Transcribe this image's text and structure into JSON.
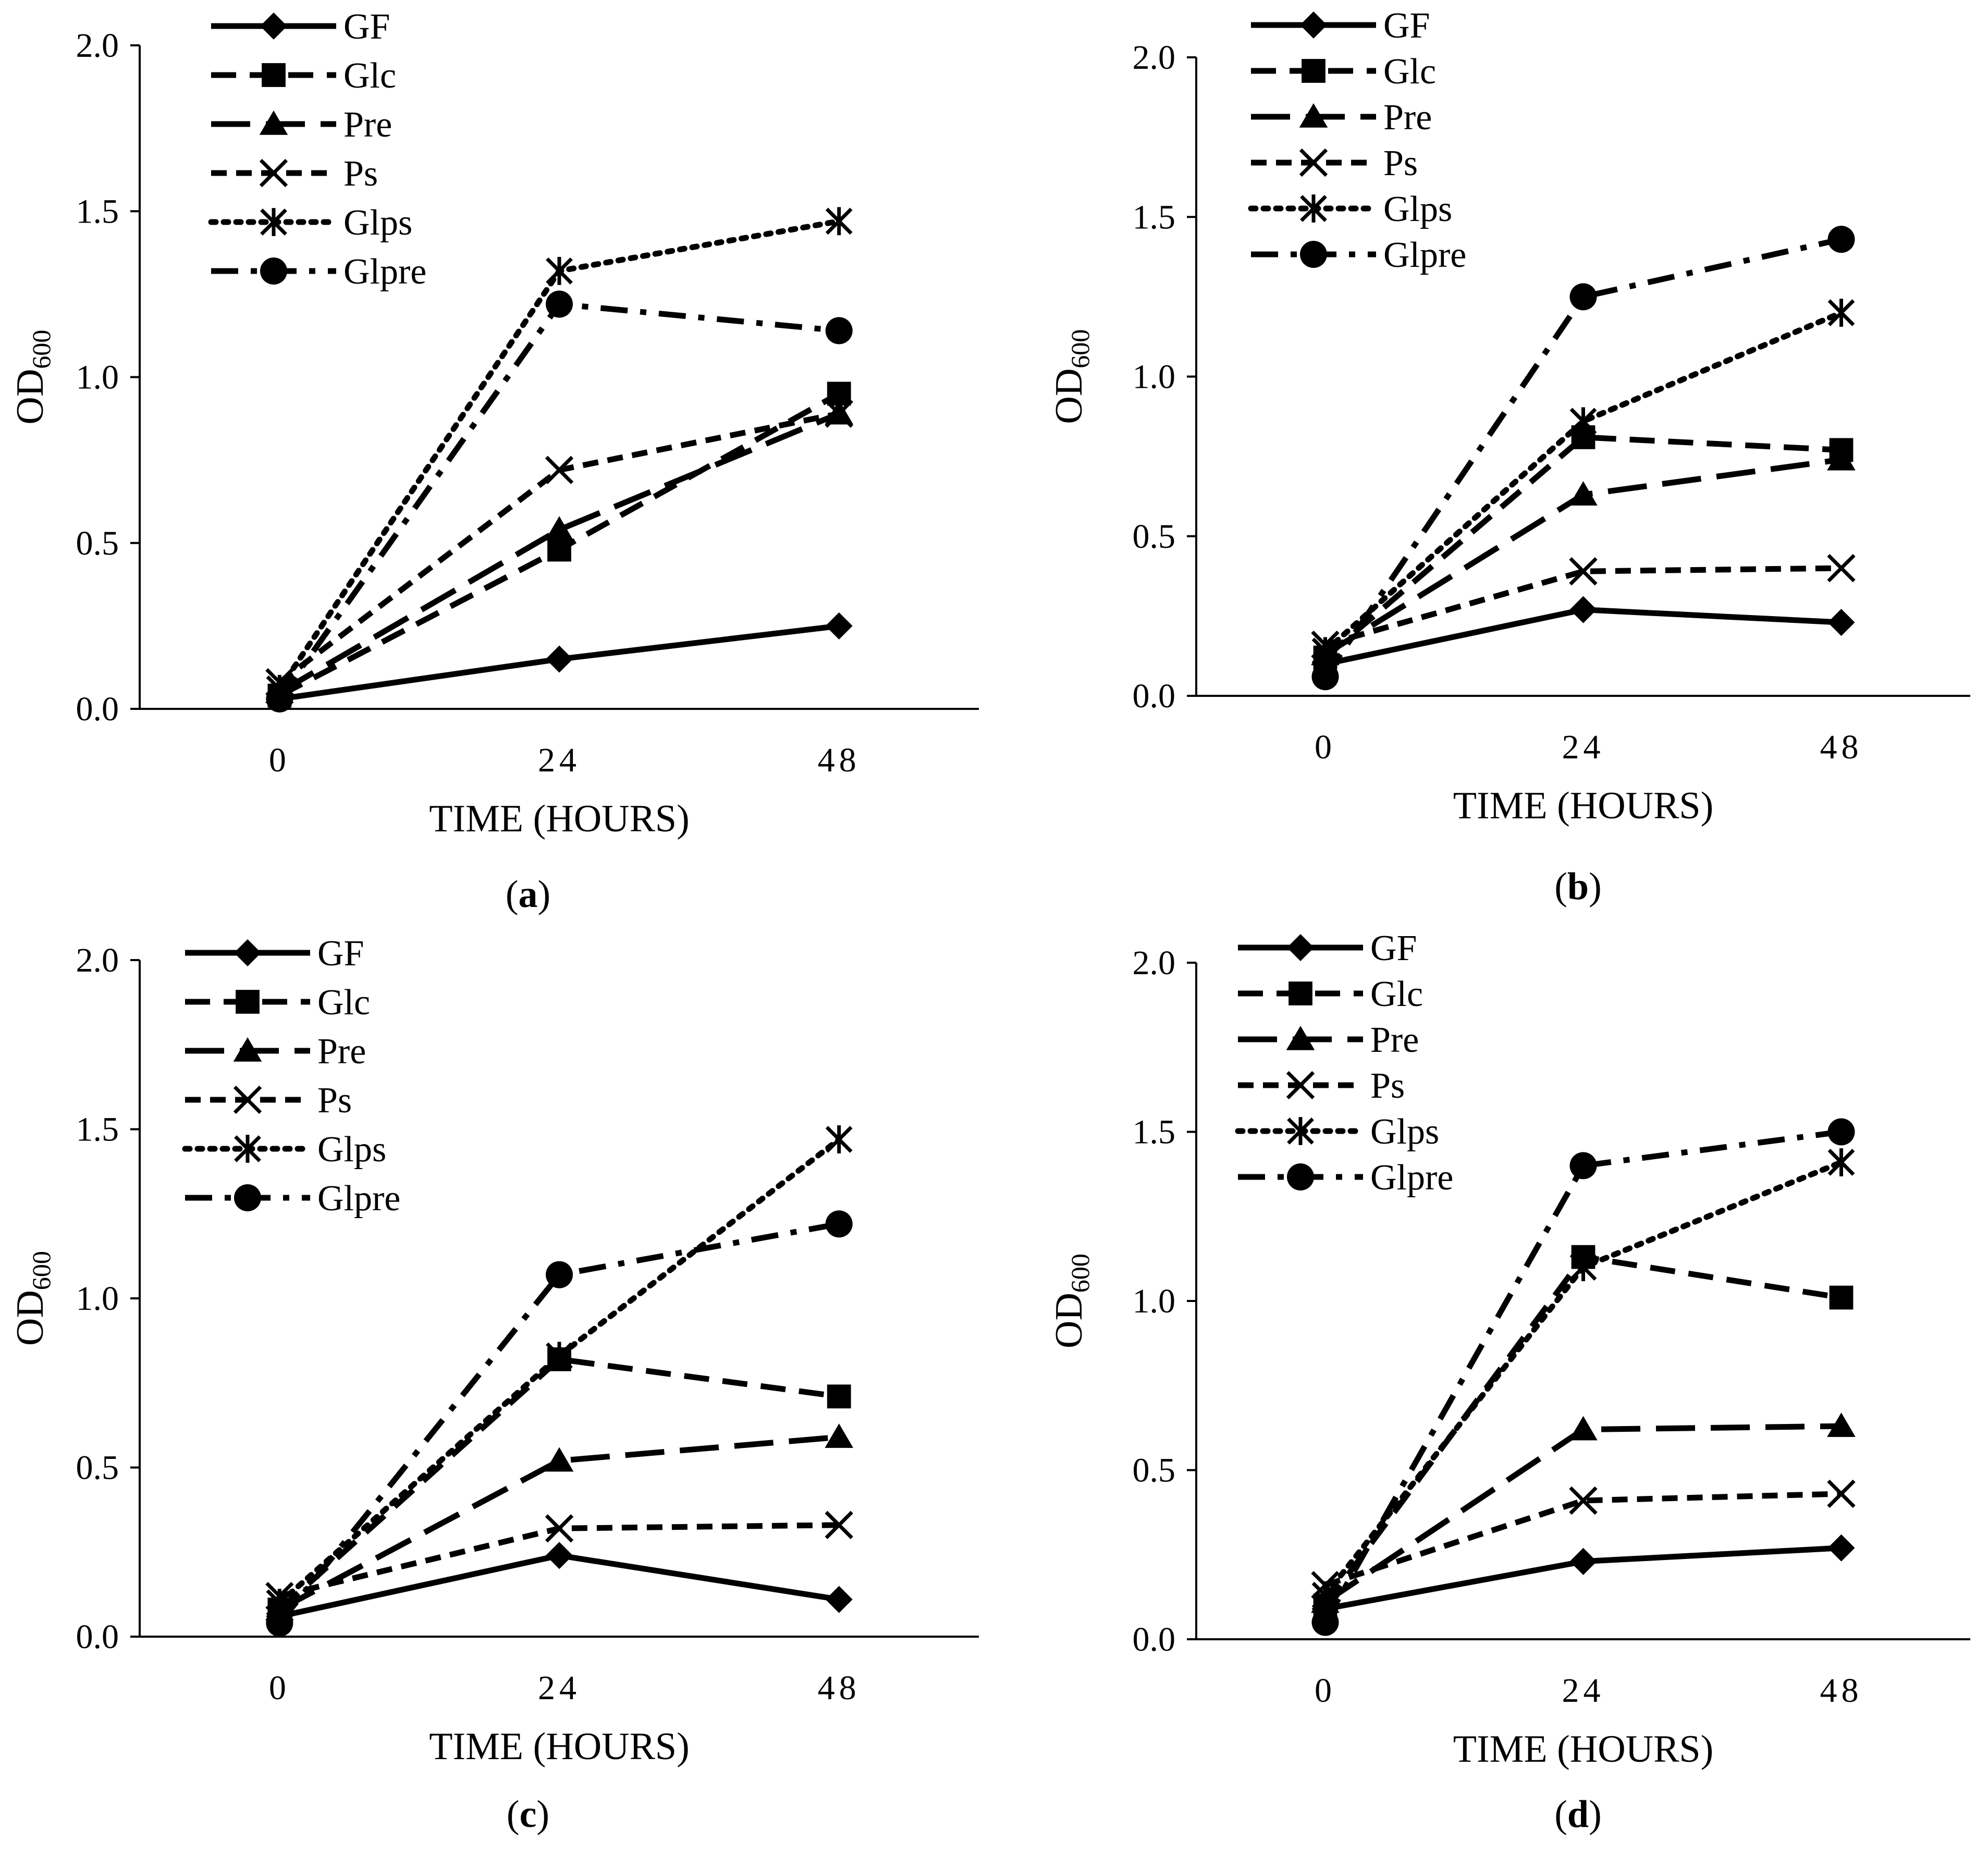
{
  "series_styles": {
    "GF": {
      "marker": "diamond-icon",
      "dash": "solid"
    },
    "Glc": {
      "marker": "square-icon",
      "dash": "dash"
    },
    "Pre": {
      "marker": "triangle-icon",
      "dash": "longdash"
    },
    "Ps": {
      "marker": "x-icon",
      "dash": "shortdash"
    },
    "Glps": {
      "marker": "asterisk-icon",
      "dash": "dot"
    },
    "Glpre": {
      "marker": "circle-icon",
      "dash": "dashdot"
    }
  },
  "colors": {
    "line": "#000000",
    "background": "#ffffff"
  },
  "chart_data": [
    {
      "type": "line",
      "panel": "a",
      "caption": "a",
      "xlabel": "TIME (HOURS)",
      "ylabel": "OD",
      "ylabel_sub": "600",
      "categories": [
        "0",
        "24",
        "48"
      ],
      "x": [
        0,
        24,
        48
      ],
      "ylim": [
        0,
        2.0
      ],
      "yticks": [
        "0.0",
        "0.5",
        "1.0",
        "1.5",
        "2.0"
      ],
      "legend_position": "top-left",
      "series": [
        {
          "name": "GF",
          "values": [
            0.03,
            0.15,
            0.25
          ]
        },
        {
          "name": "Glc",
          "values": [
            0.04,
            0.48,
            0.95
          ]
        },
        {
          "name": "Pre",
          "values": [
            0.05,
            0.54,
            0.89
          ]
        },
        {
          "name": "Ps",
          "values": [
            0.08,
            0.72,
            0.89
          ]
        },
        {
          "name": "Glps",
          "values": [
            0.06,
            1.32,
            1.47
          ]
        },
        {
          "name": "Glpre",
          "values": [
            0.03,
            1.22,
            1.14
          ]
        }
      ]
    },
    {
      "type": "line",
      "panel": "b",
      "caption": "b",
      "xlabel": "TIME (HOURS)",
      "ylabel": "OD",
      "ylabel_sub": "600",
      "categories": [
        "0",
        "24",
        "48"
      ],
      "x": [
        0,
        24,
        48
      ],
      "ylim": [
        0,
        2.0
      ],
      "yticks": [
        "0.0",
        "0.5",
        "1.0",
        "1.5",
        "2.0"
      ],
      "legend_position": "top-left",
      "series": [
        {
          "name": "GF",
          "values": [
            0.1,
            0.27,
            0.23
          ]
        },
        {
          "name": "Glc",
          "values": [
            0.12,
            0.81,
            0.77
          ]
        },
        {
          "name": "Pre",
          "values": [
            0.13,
            0.63,
            0.74
          ]
        },
        {
          "name": "Ps",
          "values": [
            0.16,
            0.39,
            0.4
          ]
        },
        {
          "name": "Glps",
          "values": [
            0.14,
            0.86,
            1.2
          ]
        },
        {
          "name": "Glpre",
          "values": [
            0.06,
            1.25,
            1.43
          ]
        }
      ]
    },
    {
      "type": "line",
      "panel": "c",
      "caption": "c",
      "xlabel": "TIME (HOURS)",
      "ylabel": "OD",
      "ylabel_sub": "600",
      "categories": [
        "0",
        "24",
        "48"
      ],
      "x": [
        0,
        24,
        48
      ],
      "ylim": [
        0,
        2.0
      ],
      "yticks": [
        "0.0",
        "0.5",
        "1.0",
        "1.5",
        "2.0"
      ],
      "legend_position": "top-left",
      "series": [
        {
          "name": "GF",
          "values": [
            0.06,
            0.24,
            0.11
          ]
        },
        {
          "name": "Glc",
          "values": [
            0.08,
            0.82,
            0.71
          ]
        },
        {
          "name": "Pre",
          "values": [
            0.08,
            0.52,
            0.59
          ]
        },
        {
          "name": "Ps",
          "values": [
            0.12,
            0.32,
            0.33
          ]
        },
        {
          "name": "Glps",
          "values": [
            0.1,
            0.83,
            1.47
          ]
        },
        {
          "name": "Glpre",
          "values": [
            0.04,
            1.07,
            1.22
          ]
        }
      ]
    },
    {
      "type": "line",
      "panel": "d",
      "caption": "d",
      "xlabel": "TIME (HOURS)",
      "ylabel": "OD",
      "ylabel_sub": "600",
      "categories": [
        "0",
        "24",
        "48"
      ],
      "x": [
        0,
        24,
        48
      ],
      "ylim": [
        0,
        2.0
      ],
      "yticks": [
        "0.0",
        "0.5",
        "1.0",
        "1.5",
        "2.0"
      ],
      "legend_position": "top-left",
      "series": [
        {
          "name": "GF",
          "values": [
            0.09,
            0.23,
            0.27
          ]
        },
        {
          "name": "Glc",
          "values": [
            0.1,
            1.13,
            1.01
          ]
        },
        {
          "name": "Pre",
          "values": [
            0.11,
            0.62,
            0.63
          ]
        },
        {
          "name": "Ps",
          "values": [
            0.16,
            0.41,
            0.43
          ]
        },
        {
          "name": "Glps",
          "values": [
            0.13,
            1.1,
            1.41
          ]
        },
        {
          "name": "Glpre",
          "values": [
            0.05,
            1.4,
            1.5
          ]
        }
      ]
    }
  ]
}
